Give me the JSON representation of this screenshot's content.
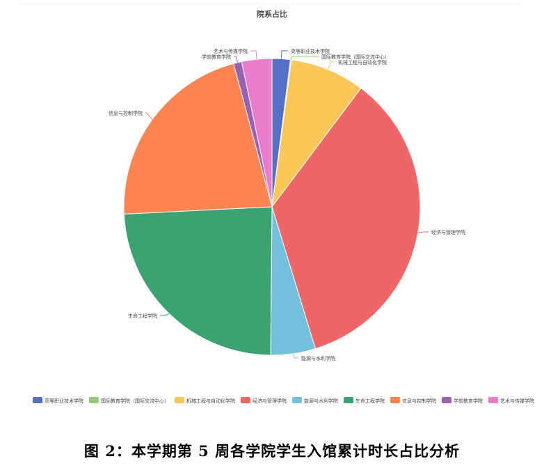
{
  "chart_data": {
    "type": "pie",
    "title": "院系占比",
    "legend_position": "bottom",
    "categories": [
      "高等职业技术学院",
      "国际教育学院（国际交流中心）",
      "机械工程与自动化学院",
      "经济与管理学院",
      "能源与水利学院",
      "生命工程学院",
      "信息与控制学院",
      "学前教育学院",
      "艺术与传媒学院"
    ],
    "values": [
      2.0,
      0.1,
      8.2,
      35.2,
      4.9,
      24.2,
      21.7,
      0.9,
      3.3
    ],
    "colors": [
      "#5470c6",
      "#91cc75",
      "#fac858",
      "#ee6666",
      "#73c0de",
      "#3ba272",
      "#fc8452",
      "#9a60b4",
      "#ea7ccc"
    ]
  },
  "caption": "图 2：本学期第 5 周各学院学生入馆累计时长占比分析"
}
